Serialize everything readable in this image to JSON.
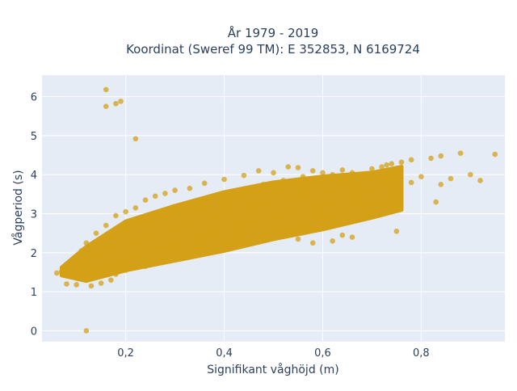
{
  "chart_data": {
    "type": "scatter",
    "title_line1": "År 1979 - 2019",
    "title_line2": "Koordinat (Sweref 99 TM): E 352853, N 6169724",
    "xlabel": "Signifikant våghöjd (m)",
    "ylabel": "Vågperiod (s)",
    "xlim": [
      0.03,
      0.97
    ],
    "ylim": [
      -0.28,
      6.55
    ],
    "x_ticks": [
      {
        "value": 0.2,
        "label": "0,2"
      },
      {
        "value": 0.4,
        "label": "0,4"
      },
      {
        "value": 0.6,
        "label": "0,6"
      },
      {
        "value": 0.8,
        "label": "0,8"
      }
    ],
    "y_ticks": [
      {
        "value": 0,
        "label": "0"
      },
      {
        "value": 1,
        "label": "1"
      },
      {
        "value": 2,
        "label": "2"
      },
      {
        "value": 3,
        "label": "3"
      },
      {
        "value": 4,
        "label": "4"
      },
      {
        "value": 5,
        "label": "5"
      },
      {
        "value": 6,
        "label": "6"
      }
    ],
    "grid": true,
    "marker_color": "#d4a017",
    "plot_bg": "#e5ecf6",
    "series": [
      {
        "name": "",
        "points": [
          [
            0.16,
            6.18
          ],
          [
            0.16,
            5.75
          ],
          [
            0.18,
            5.82
          ],
          [
            0.19,
            5.88
          ],
          [
            0.22,
            4.92
          ],
          [
            0.12,
            0.0
          ],
          [
            0.95,
            4.52
          ],
          [
            0.88,
            4.55
          ],
          [
            0.84,
            4.48
          ],
          [
            0.82,
            4.42
          ],
          [
            0.78,
            4.38
          ],
          [
            0.76,
            4.32
          ],
          [
            0.74,
            4.28
          ],
          [
            0.9,
            4.0
          ],
          [
            0.86,
            3.9
          ],
          [
            0.92,
            3.85
          ],
          [
            0.84,
            3.75
          ],
          [
            0.8,
            3.95
          ],
          [
            0.78,
            3.8
          ],
          [
            0.83,
            3.3
          ],
          [
            0.75,
            2.55
          ],
          [
            0.66,
            2.4
          ],
          [
            0.62,
            2.3
          ],
          [
            0.64,
            2.45
          ],
          [
            0.58,
            2.25
          ],
          [
            0.55,
            2.35
          ],
          [
            0.06,
            1.48
          ],
          [
            0.07,
            1.52
          ],
          [
            0.08,
            1.55
          ],
          [
            0.09,
            1.5
          ],
          [
            0.1,
            1.45
          ],
          [
            0.11,
            1.4
          ],
          [
            0.08,
            1.2
          ],
          [
            0.1,
            1.18
          ],
          [
            0.13,
            1.15
          ],
          [
            0.15,
            1.22
          ],
          [
            0.17,
            1.3
          ],
          [
            0.12,
            1.6
          ],
          [
            0.1,
            1.75
          ],
          [
            0.11,
            2.05
          ],
          [
            0.12,
            2.25
          ],
          [
            0.14,
            2.5
          ],
          [
            0.15,
            2.35
          ],
          [
            0.16,
            2.7
          ],
          [
            0.18,
            2.95
          ],
          [
            0.2,
            3.05
          ],
          [
            0.22,
            3.15
          ],
          [
            0.24,
            3.35
          ],
          [
            0.26,
            3.45
          ],
          [
            0.28,
            3.52
          ],
          [
            0.3,
            3.6
          ],
          [
            0.33,
            3.65
          ],
          [
            0.36,
            3.78
          ],
          [
            0.4,
            3.88
          ],
          [
            0.44,
            3.98
          ],
          [
            0.47,
            4.1
          ],
          [
            0.5,
            4.05
          ],
          [
            0.53,
            4.2
          ],
          [
            0.55,
            4.18
          ],
          [
            0.58,
            4.1
          ],
          [
            0.6,
            4.05
          ],
          [
            0.62,
            4.0
          ],
          [
            0.64,
            4.12
          ],
          [
            0.66,
            4.05
          ],
          [
            0.68,
            3.98
          ],
          [
            0.7,
            4.15
          ],
          [
            0.72,
            4.2
          ],
          [
            0.73,
            4.25
          ],
          [
            0.71,
            3.85
          ],
          [
            0.74,
            3.9
          ],
          [
            0.75,
            3.65
          ],
          [
            0.72,
            3.3
          ],
          [
            0.7,
            3.25
          ],
          [
            0.68,
            3.2
          ],
          [
            0.66,
            3.35
          ],
          [
            0.64,
            3.1
          ],
          [
            0.6,
            2.9
          ],
          [
            0.57,
            2.7
          ],
          [
            0.52,
            2.6
          ],
          [
            0.48,
            2.45
          ],
          [
            0.44,
            2.35
          ],
          [
            0.4,
            2.2
          ],
          [
            0.36,
            2.05
          ],
          [
            0.32,
            1.9
          ],
          [
            0.28,
            1.78
          ],
          [
            0.24,
            1.65
          ],
          [
            0.2,
            1.55
          ],
          [
            0.18,
            1.45
          ],
          [
            0.65,
            3.75
          ],
          [
            0.67,
            3.7
          ],
          [
            0.69,
            3.62
          ],
          [
            0.61,
            3.55
          ],
          [
            0.57,
            3.48
          ],
          [
            0.53,
            3.4
          ],
          [
            0.49,
            3.3
          ],
          [
            0.45,
            3.18
          ],
          [
            0.41,
            3.05
          ],
          [
            0.37,
            2.92
          ],
          [
            0.33,
            2.8
          ],
          [
            0.29,
            2.6
          ],
          [
            0.25,
            2.45
          ],
          [
            0.21,
            2.3
          ],
          [
            0.17,
            2.1
          ],
          [
            0.14,
            1.95
          ],
          [
            0.35,
            3.2
          ],
          [
            0.39,
            3.35
          ],
          [
            0.43,
            3.5
          ],
          [
            0.47,
            3.6
          ],
          [
            0.51,
            3.7
          ],
          [
            0.55,
            3.8
          ],
          [
            0.59,
            3.85
          ],
          [
            0.63,
            3.9
          ],
          [
            0.46,
            2.8
          ],
          [
            0.5,
            2.95
          ],
          [
            0.54,
            3.05
          ],
          [
            0.58,
            3.15
          ],
          [
            0.62,
            3.25
          ],
          [
            0.42,
            2.65
          ],
          [
            0.38,
            2.5
          ],
          [
            0.34,
            2.35
          ],
          [
            0.3,
            2.2
          ],
          [
            0.26,
            2.05
          ],
          [
            0.22,
            1.9
          ],
          [
            0.19,
            1.75
          ],
          [
            0.16,
            1.65
          ],
          [
            0.13,
            1.55
          ],
          [
            0.27,
            3.0
          ],
          [
            0.31,
            3.1
          ],
          [
            0.23,
            2.75
          ],
          [
            0.19,
            2.55
          ],
          [
            0.56,
            3.95
          ],
          [
            0.52,
            3.85
          ],
          [
            0.48,
            3.75
          ],
          [
            0.44,
            3.62
          ]
        ]
      }
    ]
  }
}
